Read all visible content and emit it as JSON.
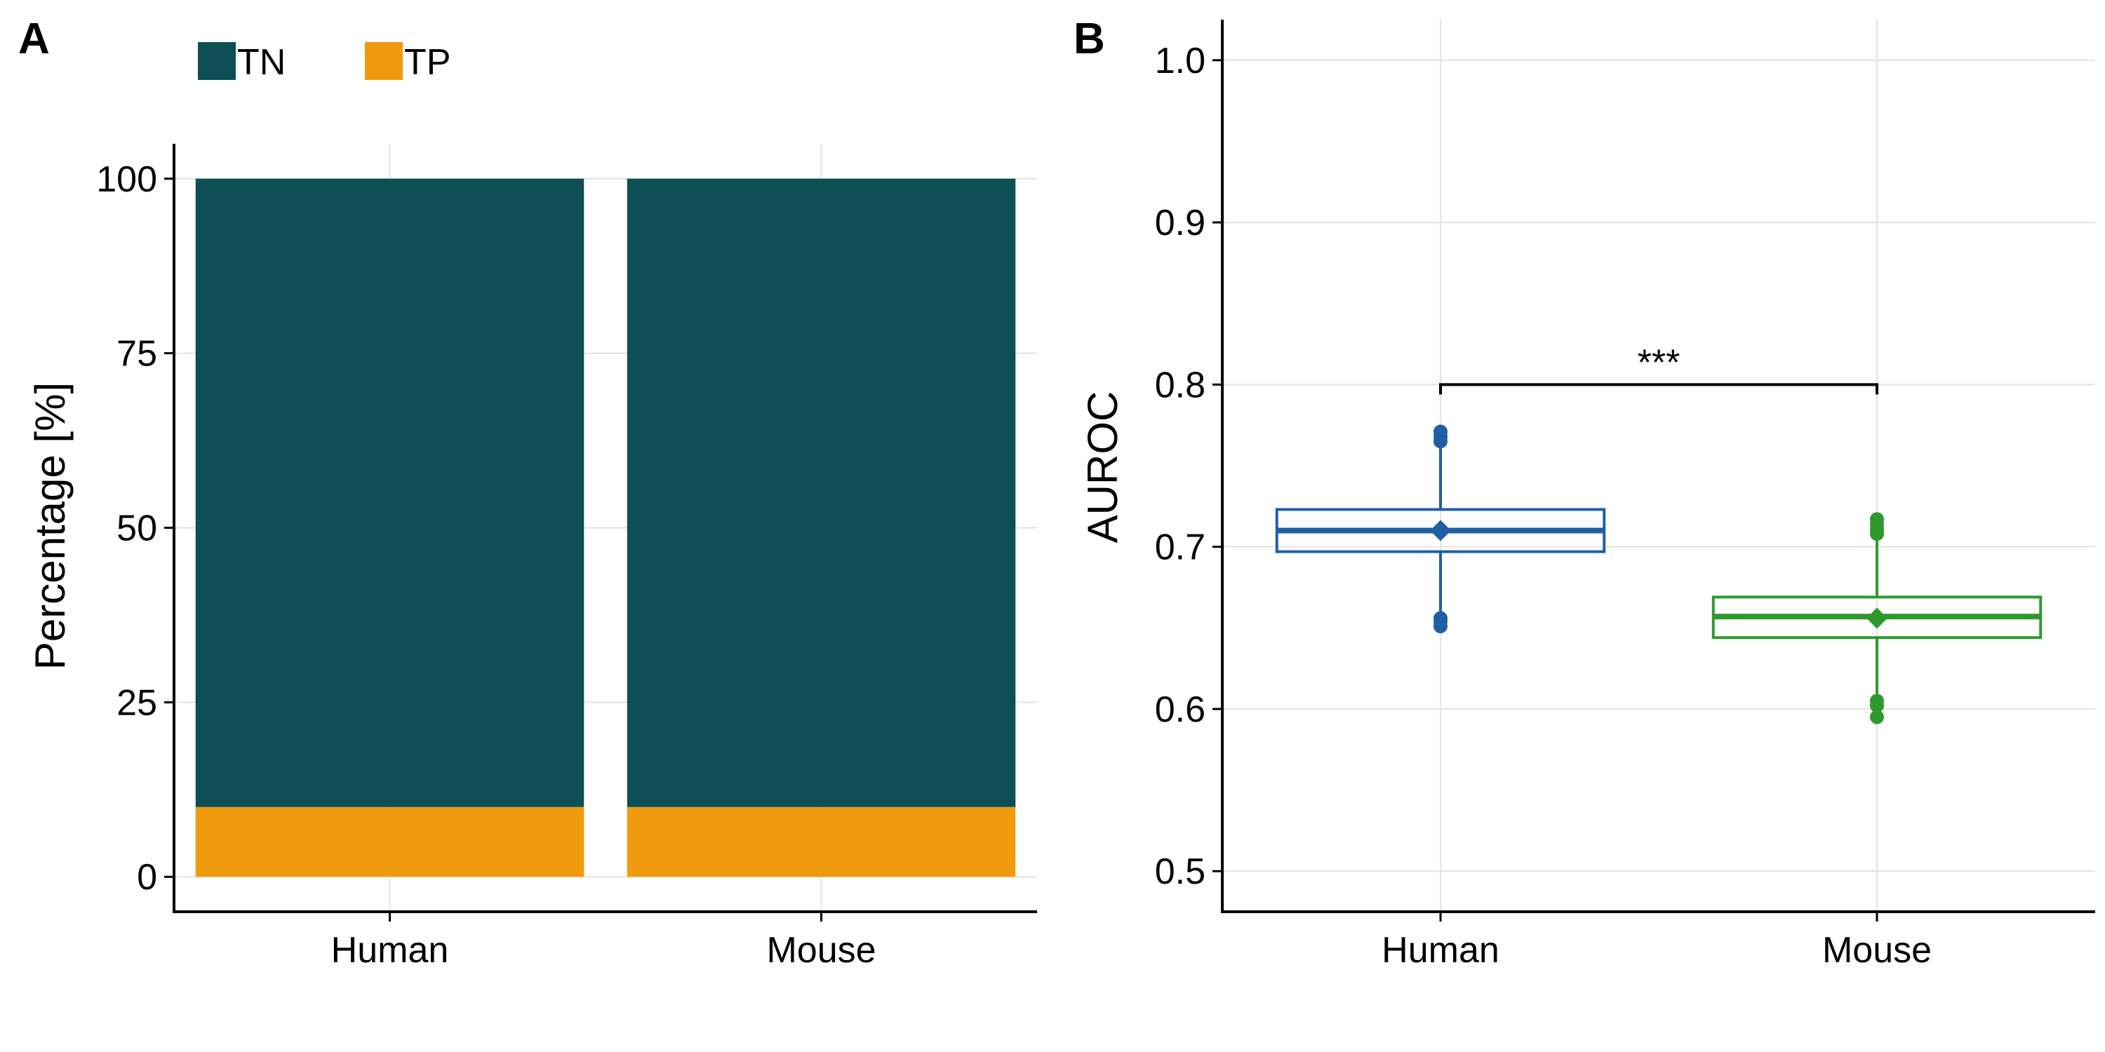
{
  "chart_data": [
    {
      "panel": "A",
      "type": "bar",
      "stacked": true,
      "categories": [
        "Human",
        "Mouse"
      ],
      "series": [
        {
          "name": "TN",
          "color": "#0d4f55",
          "values": [
            90,
            90
          ]
        },
        {
          "name": "TP",
          "color": "#f29a0d",
          "values": [
            10,
            10
          ]
        }
      ],
      "ylabel": "Percentage [%]",
      "xlabel": "",
      "ylim": [
        -5,
        105
      ],
      "yticks": [
        0,
        25,
        50,
        75,
        100
      ],
      "ytick_labels": [
        "0",
        "25",
        "50",
        "75",
        "100"
      ],
      "legend_position": "top-left",
      "grid": true
    },
    {
      "panel": "B",
      "type": "box",
      "categories": [
        "Human",
        "Mouse"
      ],
      "series": [
        {
          "category": "Human",
          "color": "#1f5fa5",
          "q1": 0.697,
          "median": 0.71,
          "q3": 0.723,
          "whisker_low": 0.655,
          "whisker_high": 0.765,
          "mean": 0.71,
          "outliers": [
            0.651,
            0.654,
            0.656,
            0.765,
            0.768,
            0.771
          ]
        },
        {
          "category": "Mouse",
          "color": "#2e9a2e",
          "q1": 0.644,
          "median": 0.657,
          "q3": 0.669,
          "whisker_low": 0.605,
          "whisker_high": 0.71,
          "mean": 0.656,
          "outliers": [
            0.595,
            0.602,
            0.605,
            0.708,
            0.711,
            0.714,
            0.717
          ]
        }
      ],
      "ylabel": "AUROC",
      "xlabel": "",
      "ylim": [
        0.475,
        1.025
      ],
      "yticks": [
        0.5,
        0.6,
        0.7,
        0.8,
        0.9,
        1.0
      ],
      "ytick_labels": [
        "0.5",
        "0.6",
        "0.7",
        "0.8",
        "0.9",
        "1.0"
      ],
      "significance": {
        "label": "***",
        "between": [
          "Human",
          "Mouse"
        ],
        "y": 0.8
      },
      "grid": true
    }
  ]
}
